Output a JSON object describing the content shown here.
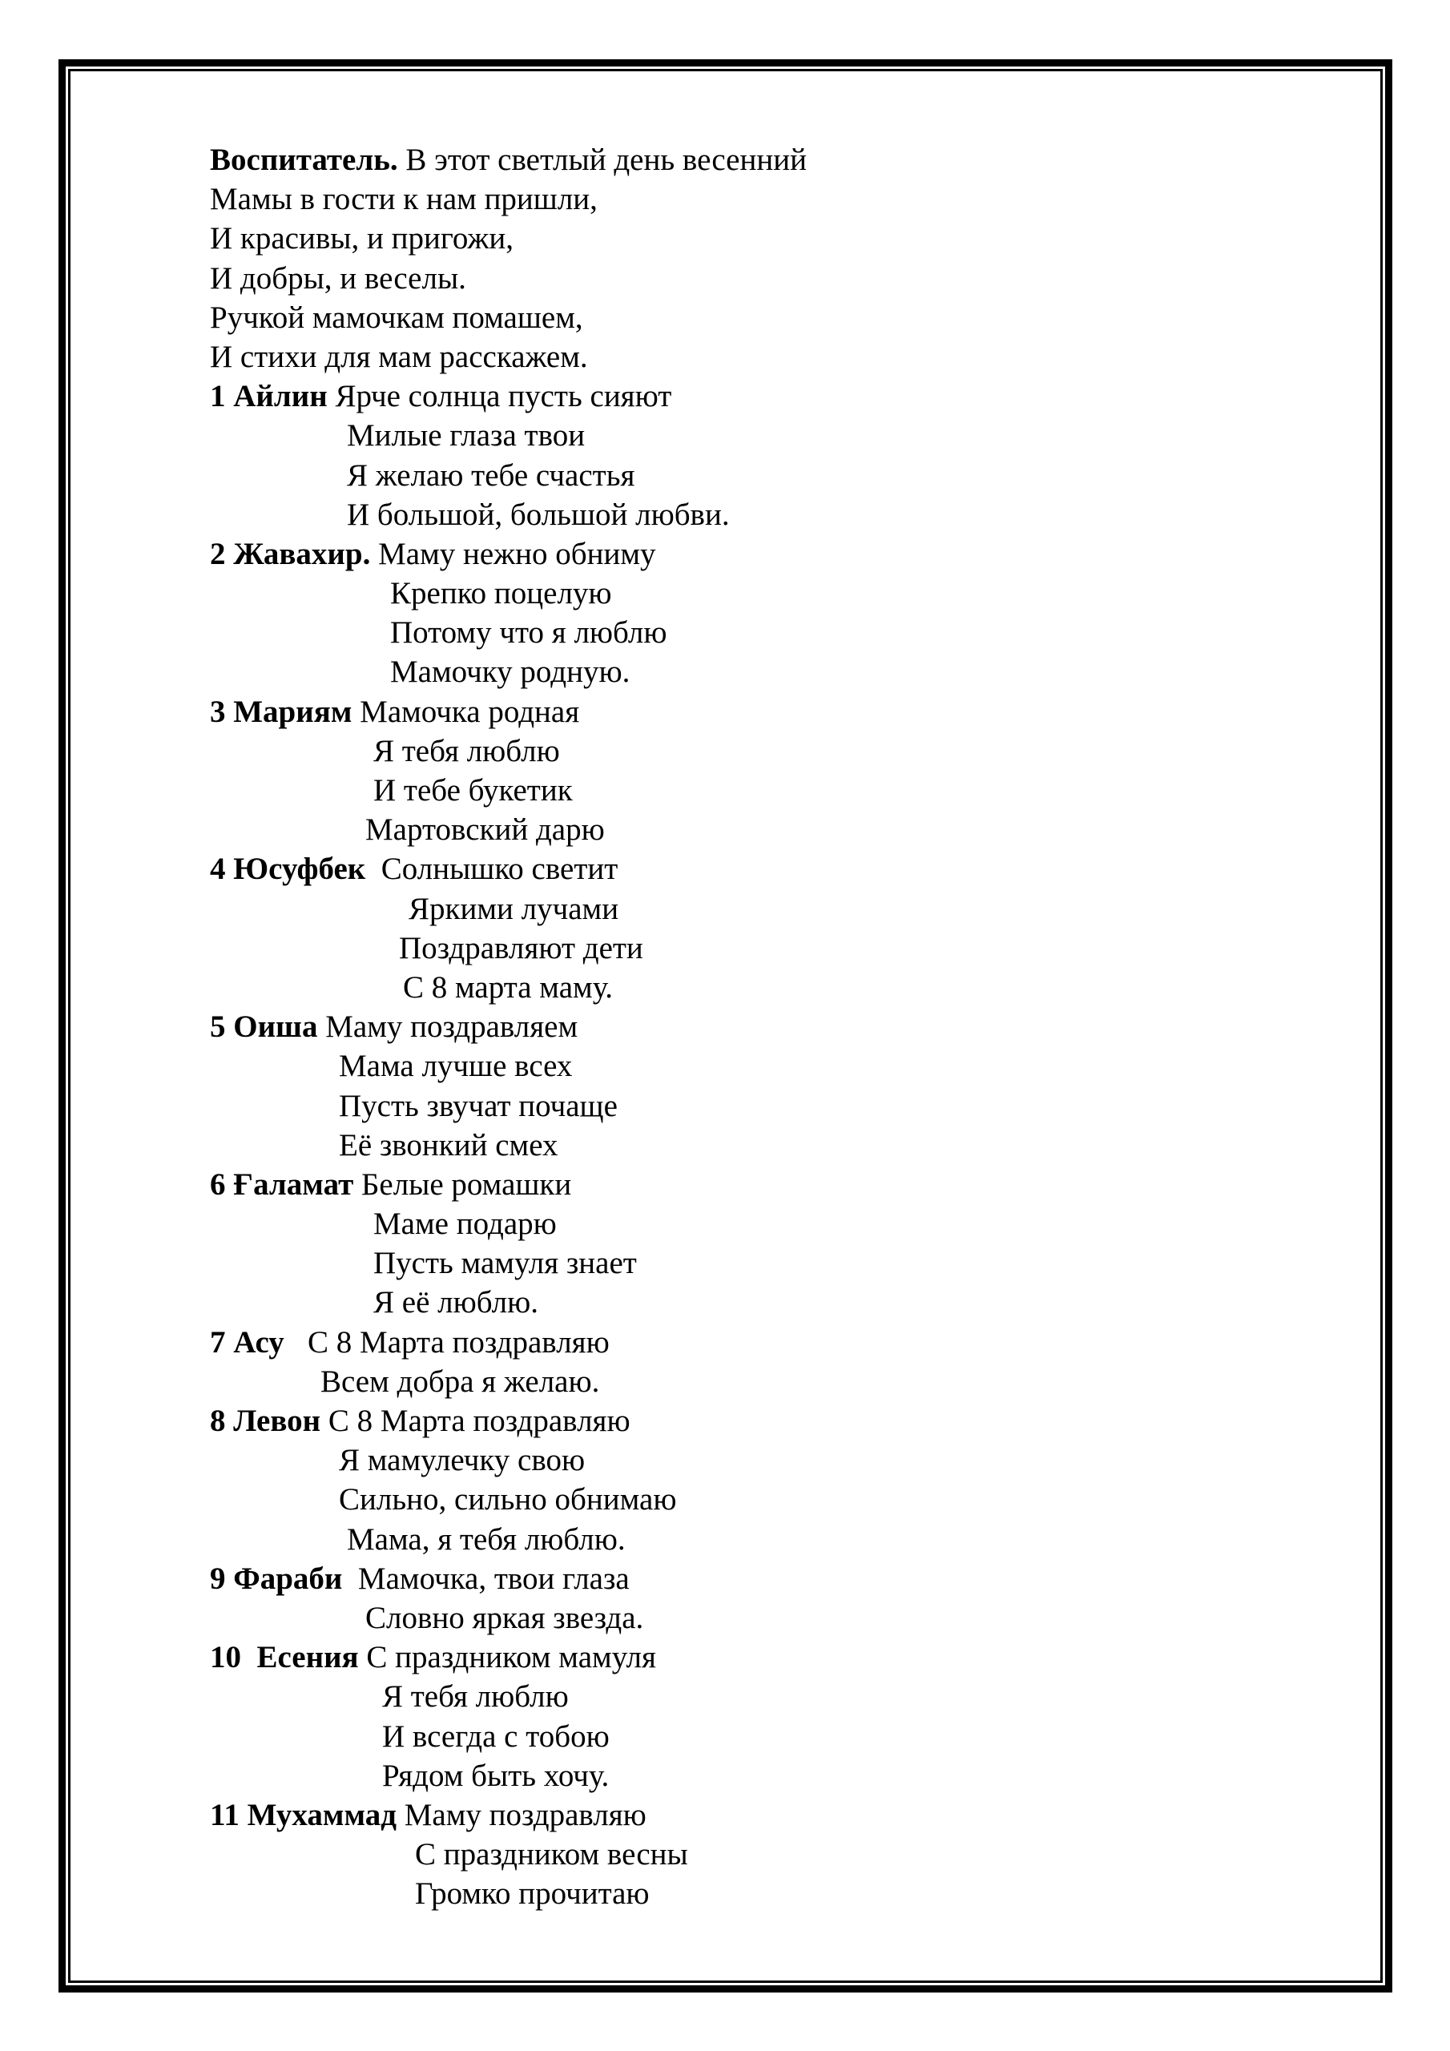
{
  "stanzas": [
    {
      "speaker": "Воспитатель.",
      "lines": [
        " В этот светлый день весенний",
        "Мамы в гости к нам пришли,",
        "И красивы, и пригожи,",
        "И добры, и веселы.",
        "Ручкой мамочкам помашем,",
        "И стихи для мам расскажем."
      ]
    },
    {
      "speaker": "1 Айлин",
      "lines": [
        " Ярче солнца пусть сияют",
        "Милые глаза твои",
        "Я желаю тебе счастья",
        "И большой, большой любви."
      ]
    },
    {
      "speaker": "2 Жавахир.",
      "lines": [
        " Маму нежно обниму",
        "Крепко поцелую",
        "Потому что я люблю",
        "Мамочку родную."
      ]
    },
    {
      "speaker": "3 Мариям",
      "lines": [
        " Мамочка родная",
        "Я тебя люблю",
        "И тебе букетик",
        "Мартовский дарю"
      ]
    },
    {
      "speaker": "4 Юсуфбек",
      "lines": [
        "  Солнышко светит",
        "Яркими лучами",
        "Поздравляют дети",
        "С 8 марта маму."
      ]
    },
    {
      "speaker": "5 Оиша",
      "lines": [
        " Маму поздравляем",
        "Мама лучше всех",
        "Пусть звучат почаще",
        "Её звонкий смех"
      ]
    },
    {
      "speaker": "6 Ғаламат",
      "lines": [
        " Белые ромашки",
        "Маме подарю",
        "Пусть мамуля знает",
        "Я её люблю."
      ]
    },
    {
      "speaker": "7 Асу",
      "lines": [
        "   С 8 Марта поздравляю",
        "Всем добра я желаю."
      ]
    },
    {
      "speaker": "8 Левон",
      "lines": [
        " С 8 Марта поздравляю",
        "Я мамулечку свою",
        "Сильно, сильно обнимаю",
        "Мама, я тебя люблю."
      ]
    },
    {
      "speaker": "9 Фараби",
      "lines": [
        "  Мамочка, твои глаза",
        "Словно яркая звезда."
      ]
    },
    {
      "speaker": "10  Есения",
      "lines": [
        " С праздником мамуля",
        "Я тебя люблю",
        "И всегда с тобою",
        "Рядом быть хочу."
      ]
    },
    {
      "speaker": "11 Мухаммад",
      "lines": [
        " Маму поздравляю",
        "С праздником весны",
        "Громко прочитаю"
      ]
    }
  ]
}
